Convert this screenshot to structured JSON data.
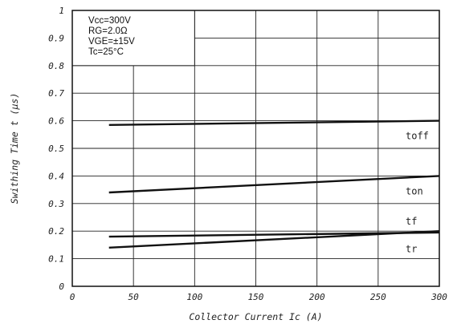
{
  "chart_data": {
    "type": "line",
    "title": "",
    "xlabel": "Collector Current Ic (A)",
    "ylabel": "Swithing Time t (μs)",
    "xlim": [
      0,
      300
    ],
    "ylim": [
      0,
      1
    ],
    "x_ticks": [
      "0",
      "50",
      "100",
      "150",
      "200",
      "250",
      "300"
    ],
    "y_ticks": [
      "0",
      "0.1",
      "0.2",
      "0.3",
      "0.4",
      "0.5",
      "0.6",
      "0.7",
      "0.8",
      "0.9",
      "1"
    ],
    "grid": true,
    "conditions": [
      "Vcc=300V",
      "RG=2.0Ω",
      "VGE=±15V",
      "Tc=25°C"
    ],
    "series": [
      {
        "name": "toff",
        "x": [
          30,
          300
        ],
        "y": [
          0.585,
          0.6
        ]
      },
      {
        "name": "ton",
        "x": [
          30,
          300
        ],
        "y": [
          0.34,
          0.4
        ]
      },
      {
        "name": "tf",
        "x": [
          30,
          300
        ],
        "y": [
          0.18,
          0.195
        ]
      },
      {
        "name": "tr",
        "x": [
          30,
          300
        ],
        "y": [
          0.14,
          0.2
        ]
      }
    ],
    "line_color": "#111111",
    "grid_color": "#222222"
  }
}
